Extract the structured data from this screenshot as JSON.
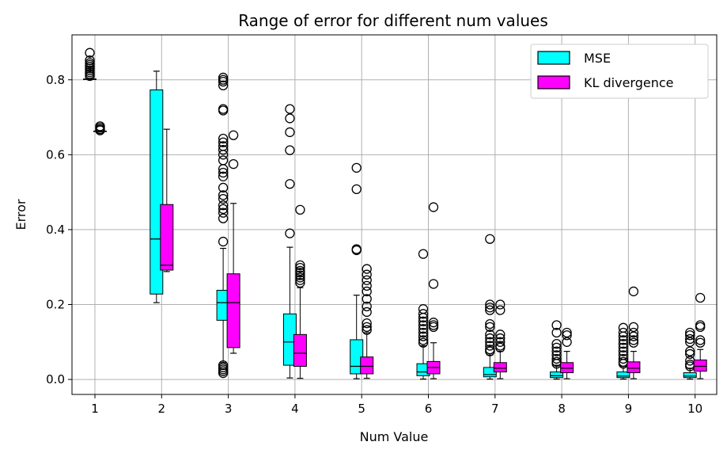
{
  "chart_data": {
    "type": "boxplot",
    "title": "Range of error for different num values",
    "xlabel": "Num Value",
    "ylabel": "Error",
    "categories": [
      "1",
      "2",
      "3",
      "4",
      "5",
      "6",
      "7",
      "8",
      "9",
      "10"
    ],
    "ylim": [
      -0.04,
      0.92
    ],
    "yticks": [
      "0.0",
      "0.2",
      "0.4",
      "0.6",
      "0.8"
    ],
    "grid": true,
    "legend_position": "top-right",
    "series": [
      {
        "name": "MSE",
        "color": "#00ffff",
        "boxes": [
          {
            "whislo": 0.802,
            "q1": 0.802,
            "med": 0.802,
            "q3": 0.802,
            "whishi": 0.802,
            "fliers": [
              0.872,
              0.852,
              0.845,
              0.84,
              0.835,
              0.83,
              0.825,
              0.82,
              0.815,
              0.81
            ]
          },
          {
            "whislo": 0.205,
            "q1": 0.228,
            "med": 0.375,
            "q3": 0.773,
            "whishi": 0.823,
            "fliers": []
          },
          {
            "whislo": 0.045,
            "q1": 0.158,
            "med": 0.205,
            "q3": 0.238,
            "whishi": 0.35,
            "fliers": [
              0.806,
              0.8,
              0.795,
              0.785,
              0.722,
              0.718,
              0.643,
              0.633,
              0.623,
              0.613,
              0.6,
              0.585,
              0.562,
              0.552,
              0.542,
              0.512,
              0.492,
              0.482,
              0.465,
              0.455,
              0.445,
              0.43,
              0.368,
              0.038,
              0.032,
              0.027,
              0.022,
              0.017
            ]
          },
          {
            "whislo": 0.004,
            "q1": 0.038,
            "med": 0.1,
            "q3": 0.175,
            "whishi": 0.353,
            "fliers": [
              0.722,
              0.697,
              0.66,
              0.612,
              0.522,
              0.39
            ]
          },
          {
            "whislo": 0.002,
            "q1": 0.015,
            "med": 0.035,
            "q3": 0.106,
            "whishi": 0.225,
            "fliers": [
              0.565,
              0.508,
              0.348,
              0.345
            ]
          },
          {
            "whislo": 0.001,
            "q1": 0.01,
            "med": 0.02,
            "q3": 0.042,
            "whishi": 0.09,
            "fliers": [
              0.335,
              0.188,
              0.175,
              0.165,
              0.155,
              0.145,
              0.135,
              0.125,
              0.115,
              0.105,
              0.098
            ]
          },
          {
            "whislo": 0.001,
            "q1": 0.007,
            "med": 0.013,
            "q3": 0.032,
            "whishi": 0.065,
            "fliers": [
              0.375,
              0.2,
              0.192,
              0.185,
              0.148,
              0.14,
              0.12,
              0.11,
              0.1,
              0.09,
              0.08,
              0.075
            ]
          },
          {
            "whislo": 0.001,
            "q1": 0.005,
            "med": 0.01,
            "q3": 0.02,
            "whishi": 0.038,
            "fliers": [
              0.145,
              0.125,
              0.095,
              0.085,
              0.075,
              0.065,
              0.055,
              0.047,
              0.042
            ]
          },
          {
            "whislo": 0.001,
            "q1": 0.005,
            "med": 0.009,
            "q3": 0.02,
            "whishi": 0.035,
            "fliers": [
              0.138,
              0.125,
              0.115,
              0.105,
              0.095,
              0.085,
              0.075,
              0.065,
              0.055,
              0.047,
              0.042
            ]
          },
          {
            "whislo": 0.001,
            "q1": 0.005,
            "med": 0.009,
            "q3": 0.018,
            "whishi": 0.03,
            "fliers": [
              0.125,
              0.118,
              0.108,
              0.1,
              0.075,
              0.068,
              0.05,
              0.04,
              0.035
            ]
          }
        ]
      },
      {
        "name": "KL divergence",
        "color": "#ff00ff",
        "boxes": [
          {
            "whislo": 0.663,
            "q1": 0.663,
            "med": 0.663,
            "q3": 0.663,
            "whishi": 0.663,
            "fliers": [
              0.676,
              0.672,
              0.668,
              0.665
            ]
          },
          {
            "whislo": 0.288,
            "q1": 0.292,
            "med": 0.305,
            "q3": 0.467,
            "whishi": 0.668,
            "fliers": []
          },
          {
            "whislo": 0.07,
            "q1": 0.085,
            "med": 0.205,
            "q3": 0.282,
            "whishi": 0.47,
            "fliers": [
              0.652,
              0.575
            ]
          },
          {
            "whislo": 0.003,
            "q1": 0.035,
            "med": 0.07,
            "q3": 0.12,
            "whishi": 0.245,
            "fliers": [
              0.453,
              0.305,
              0.298,
              0.29,
              0.285,
              0.278,
              0.272,
              0.265,
              0.258
            ]
          },
          {
            "whislo": 0.003,
            "q1": 0.015,
            "med": 0.035,
            "q3": 0.06,
            "whishi": 0.125,
            "fliers": [
              0.295,
              0.28,
              0.265,
              0.25,
              0.235,
              0.215,
              0.195,
              0.18,
              0.15,
              0.14,
              0.132
            ]
          },
          {
            "whislo": 0.002,
            "q1": 0.015,
            "med": 0.032,
            "q3": 0.048,
            "whishi": 0.098,
            "fliers": [
              0.46,
              0.255,
              0.152,
              0.145,
              0.14
            ]
          },
          {
            "whislo": 0.002,
            "q1": 0.02,
            "med": 0.03,
            "q3": 0.045,
            "whishi": 0.075,
            "fliers": [
              0.2,
              0.185,
              0.12,
              0.11,
              0.1,
              0.09,
              0.085
            ]
          },
          {
            "whislo": 0.002,
            "q1": 0.018,
            "med": 0.03,
            "q3": 0.045,
            "whishi": 0.075,
            "fliers": [
              0.125,
              0.118,
              0.1
            ]
          },
          {
            "whislo": 0.002,
            "q1": 0.018,
            "med": 0.03,
            "q3": 0.047,
            "whishi": 0.075,
            "fliers": [
              0.235,
              0.14,
              0.125,
              0.115,
              0.105,
              0.098
            ]
          },
          {
            "whislo": 0.002,
            "q1": 0.022,
            "med": 0.035,
            "q3": 0.052,
            "whishi": 0.08,
            "fliers": [
              0.218,
              0.145,
              0.14,
              0.105,
              0.098
            ]
          }
        ]
      }
    ]
  }
}
